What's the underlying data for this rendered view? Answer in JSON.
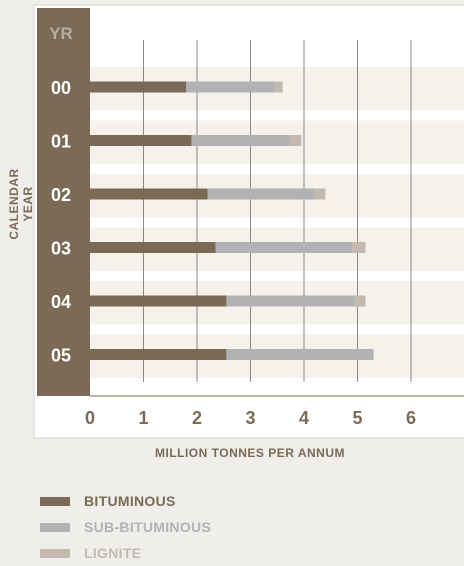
{
  "chart_data": {
    "type": "bar",
    "orientation": "horizontal",
    "stacked": true,
    "corner_label": "YR",
    "ylabel": "CALENDAR YEAR",
    "xlabel": "MILLION TONNES PER ANNUM",
    "categories": [
      "00",
      "01",
      "02",
      "03",
      "04",
      "05"
    ],
    "x_ticks": [
      "0",
      "1",
      "2",
      "3",
      "4",
      "5",
      "6"
    ],
    "xlim": [
      0,
      7
    ],
    "grid": true,
    "legend_position": "bottom-left",
    "series": [
      {
        "name": "BITUMINOUS",
        "color": "#7b6a55",
        "values": [
          1.8,
          1.9,
          2.2,
          2.35,
          2.55,
          2.55
        ]
      },
      {
        "name": "SUB-BITUMINOUS",
        "color": "#b2b1b3",
        "values": [
          1.65,
          1.85,
          2.0,
          2.55,
          2.4,
          2.75
        ]
      },
      {
        "name": "LIGNITE",
        "color": "#c3b9ad",
        "values": [
          0.15,
          0.2,
          0.2,
          0.25,
          0.2,
          0.0
        ]
      }
    ]
  }
}
